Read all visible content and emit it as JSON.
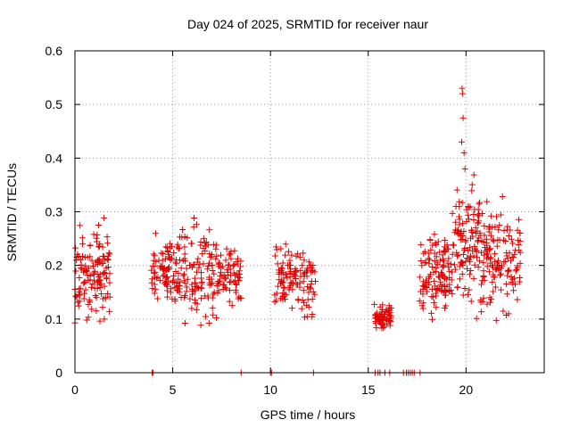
{
  "chart_data": {
    "type": "scatter",
    "title": "Day 024 of 2025, SRMTID for receiver naur",
    "xlabel": "GPS time / hours",
    "ylabel": "SRMTID / TECUs",
    "xlim": [
      0,
      24
    ],
    "ylim": [
      0,
      0.6
    ],
    "xticks": [
      0,
      5,
      10,
      15,
      20
    ],
    "xtick_labels": [
      "0",
      "5",
      "10",
      "15",
      "20"
    ],
    "yticks": [
      0,
      0.1,
      0.2,
      0.3,
      0.4,
      0.5,
      0.6
    ],
    "ytick_labels": [
      "0",
      "0.1",
      "0.2",
      "0.3",
      "0.4",
      "0.5",
      "0.6"
    ],
    "grid": true,
    "marker": "+",
    "color": "#e00000",
    "series": [
      {
        "name": "SRMTID",
        "clusters": [
          {
            "x_range": [
              0.0,
              1.8
            ],
            "y_range": [
              0.07,
              0.3
            ],
            "n": 130
          },
          {
            "x_range": [
              3.9,
              5.3
            ],
            "y_range": [
              0.11,
              0.27
            ],
            "n": 90
          },
          {
            "x_range": [
              5.3,
              7.3
            ],
            "y_range": [
              0.06,
              0.31
            ],
            "n": 120
          },
          {
            "x_range": [
              7.3,
              8.5
            ],
            "y_range": [
              0.11,
              0.26
            ],
            "n": 70
          },
          {
            "x_range": [
              10.2,
              12.3
            ],
            "y_range": [
              0.09,
              0.26
            ],
            "n": 120
          },
          {
            "x_range": [
              15.3,
              16.2
            ],
            "y_range": [
              0.07,
              0.14
            ],
            "n": 60
          },
          {
            "x_range": [
              17.6,
              19.3
            ],
            "y_range": [
              0.07,
              0.29
            ],
            "n": 120
          },
          {
            "x_range": [
              19.3,
              20.7
            ],
            "y_range": [
              0.08,
              0.4
            ],
            "n": 110
          },
          {
            "x_range": [
              20.7,
              22.8
            ],
            "y_range": [
              0.08,
              0.34
            ],
            "n": 140
          }
        ],
        "peaks": [
          {
            "x": 19.8,
            "y": 0.53
          },
          {
            "x": 19.82,
            "y": 0.52
          },
          {
            "x": 19.85,
            "y": 0.475
          },
          {
            "x": 19.78,
            "y": 0.43
          },
          {
            "x": 19.9,
            "y": 0.41
          },
          {
            "x": 19.95,
            "y": 0.38
          }
        ],
        "zero_markers": [
          3.95,
          4.0,
          8.5,
          10.0,
          10.05,
          12.2,
          15.35,
          15.5,
          15.6,
          15.85,
          16.1,
          16.8,
          16.95,
          17.05,
          17.15,
          17.25,
          17.35,
          17.65
        ]
      }
    ]
  }
}
